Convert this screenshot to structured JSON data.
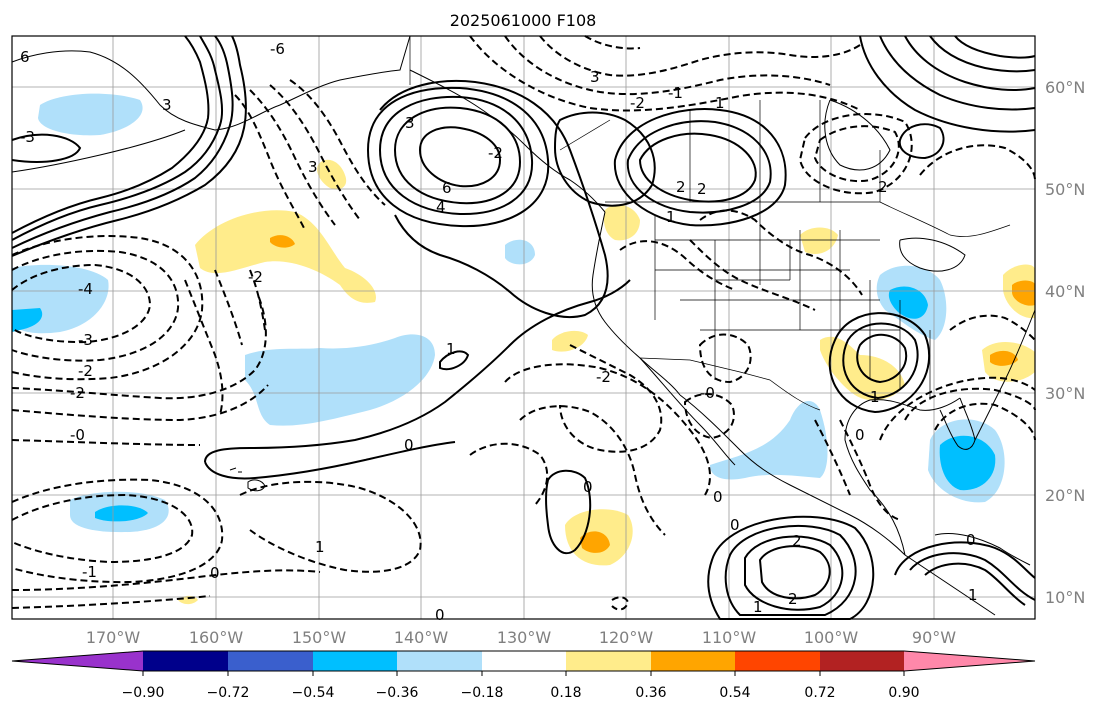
{
  "title": "2025061000 F108",
  "map": {
    "lon_labels": [
      "170°W",
      "160°W",
      "150°W",
      "140°W",
      "130°W",
      "120°W",
      "110°W",
      "100°W",
      "90°W"
    ],
    "lat_labels": [
      "60°N",
      "50°N",
      "40°N",
      "30°N",
      "20°N",
      "10°N"
    ],
    "contour_labels": {
      "l1": "3",
      "l2": "3",
      "l3": "6",
      "l4": "4",
      "l5": "2",
      "l6": "1",
      "l7": "2",
      "l8": "2",
      "l9": "-3",
      "l10": "-2",
      "l11": "-2",
      "l12": "-0",
      "l13": "-1",
      "l14": "0",
      "l15": "0",
      "l16": "1",
      "l17": "-2",
      "l18": "0",
      "l19": "0",
      "l20": "2",
      "l21": "1",
      "l22": "2",
      "l23": "0",
      "l24": "1",
      "l25": "-2",
      "l26": "1",
      "l27": "0",
      "l28": "-6",
      "l29": "3",
      "l30": "0",
      "l31": "-4",
      "l32": "-3",
      "l33": "6",
      "l34": "1",
      "l35": "-1",
      "l36": "-2",
      "l37": "-2",
      "l38": "1",
      "l39": "0",
      "l40": "3",
      "l41": "-0"
    }
  },
  "colorbar": {
    "ticks": [
      "−0.90",
      "−0.72",
      "−0.54",
      "−0.36",
      "−0.18",
      "0.18",
      "0.36",
      "0.54",
      "0.72",
      "0.90"
    ],
    "colors": [
      "#9932cc",
      "#00008b",
      "#3a5fcd",
      "#00bfff",
      "#b0e0fa",
      "#ffffff",
      "#ffec8b",
      "#ffa500",
      "#ff4500",
      "#b22222",
      "#ff88aa"
    ]
  }
}
